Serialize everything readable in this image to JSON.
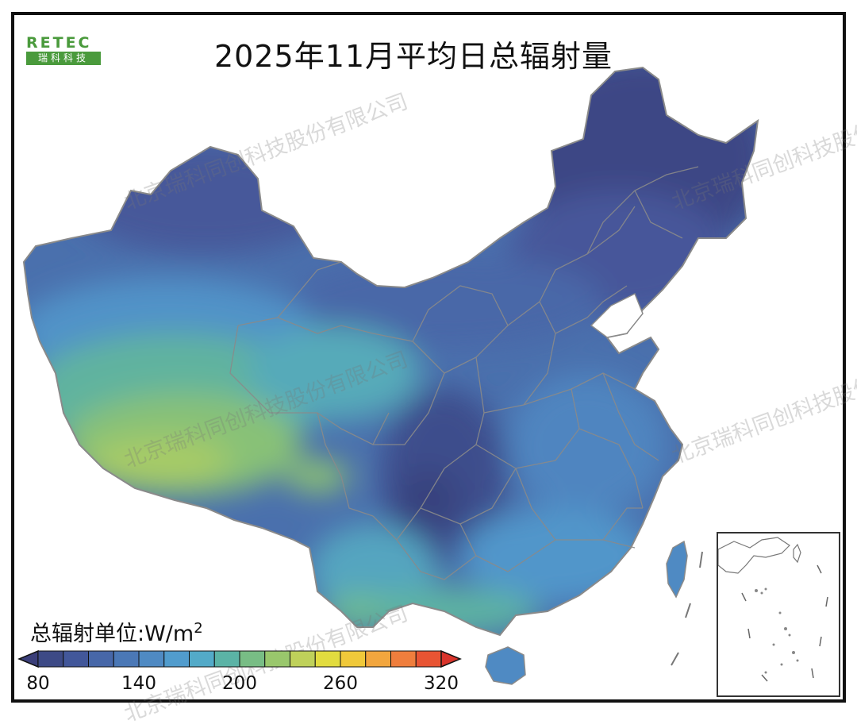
{
  "title": "2025年11月平均日总辐射量",
  "logo": {
    "brand": "RETEC",
    "subtitle": "瑞科科技"
  },
  "watermark": "北京瑞科同创科技股份有限公司",
  "legend": {
    "unit_label": "总辐射单位:W/m",
    "unit_superscript": "2",
    "min": 80,
    "max": 320,
    "step": 15,
    "ticks": [
      "80",
      "140",
      "200",
      "260",
      "320"
    ],
    "colors": [
      "#3d4a86",
      "#42579a",
      "#4767a8",
      "#4b78b6",
      "#4f8ac3",
      "#519ccd",
      "#53aac8",
      "#5bb3a6",
      "#78bd85",
      "#99c76c",
      "#bfd15a",
      "#e2dc3f",
      "#f0c93a",
      "#f2a63e",
      "#ef7e3d",
      "#e85433"
    ],
    "under_color": "#3b3f7a",
    "over_color": "#d9342b"
  },
  "colors": {
    "border_lines": "#8a8a8a",
    "frame": "#111111"
  }
}
